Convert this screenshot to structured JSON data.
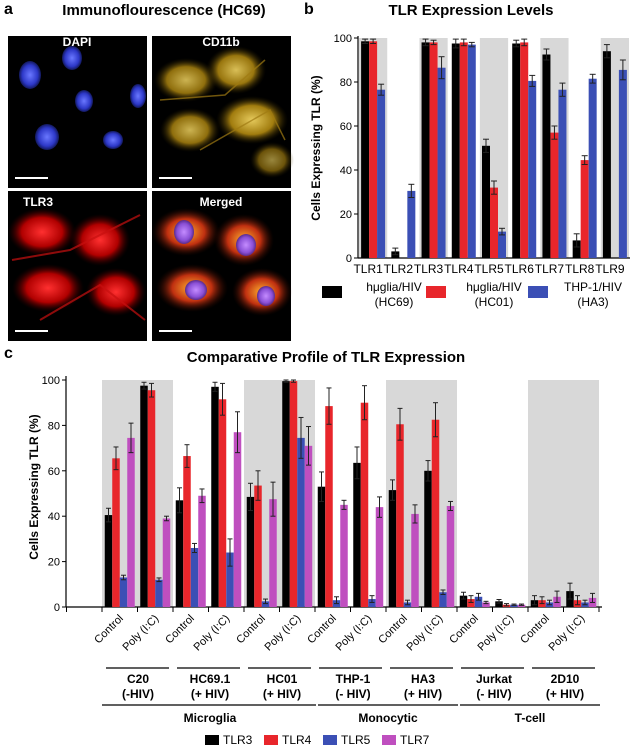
{
  "panel_a": {
    "letter": "a",
    "title": "Immunoflourescence (HC69)",
    "images": [
      {
        "label": "DAPI",
        "tone": "blue"
      },
      {
        "label": "CD11b",
        "tone": "yellow"
      },
      {
        "label": "TLR3",
        "tone": "red"
      },
      {
        "label": "Merged",
        "tone": "merged"
      }
    ]
  },
  "panel_b": {
    "letter": "b",
    "legend": [
      {
        "line1": "hμglia/HIV",
        "line2": "(HC69)",
        "color": "#000000"
      },
      {
        "line1": "hμglia/HIV",
        "line2": "(HC01)",
        "color": "#e8262b"
      },
      {
        "line1": "THP-1/HIV",
        "line2": "(HA3)",
        "color": "#3b4fb5"
      }
    ]
  },
  "panel_c": {
    "letter": "c",
    "groups": [
      {
        "label1": "C20",
        "label2": "(-HIV)"
      },
      {
        "label1": "HC69.1",
        "label2": "(+ HIV)"
      },
      {
        "label1": "HC01",
        "label2": "(+ HIV)"
      },
      {
        "label1": "THP-1",
        "label2": "(- HIV)"
      },
      {
        "label1": "HA3",
        "label2": "(+ HIV)"
      },
      {
        "label1": "Jurkat",
        "label2": "(- HIV)"
      },
      {
        "label1": "2D10",
        "label2": "(+ HIV)"
      }
    ],
    "categories": [
      {
        "label": "Microglia"
      },
      {
        "label": "Monocytic"
      },
      {
        "label": "T-cell"
      }
    ]
  },
  "chart_data": [
    {
      "type": "bar",
      "title": "TLR Expression Levels",
      "xlabel": "",
      "ylabel": "Cells Expressing TLR (%)",
      "ylim": [
        0,
        100
      ],
      "yticks": [
        0,
        20,
        40,
        60,
        80,
        100
      ],
      "categories": [
        "TLR1",
        "TLR2",
        "TLR3",
        "TLR4",
        "TLR5",
        "TLR6",
        "TLR7",
        "TLR8",
        "TLR9"
      ],
      "series": [
        {
          "name": "hμglia/HIV (HC69)",
          "color": "#000000",
          "values": [
            98.5,
            3,
            98,
            97.5,
            51,
            97.5,
            92.5,
            8,
            94
          ],
          "errors": [
            1,
            1.5,
            1.5,
            2,
            3,
            1.5,
            2.5,
            3,
            3
          ]
        },
        {
          "name": "hμglia/HIV (HC01)",
          "color": "#e8262b",
          "values": [
            98.5,
            0,
            98,
            98,
            32,
            98,
            57,
            44.5,
            0
          ],
          "errors": [
            1,
            0,
            1,
            1.5,
            3,
            1.5,
            3,
            2,
            0
          ]
        },
        {
          "name": "THP-1/HIV (HA3)",
          "color": "#3b4fb5",
          "values": [
            76.5,
            30.5,
            86.5,
            97,
            12,
            80.5,
            76.5,
            81.5,
            85.5
          ],
          "errors": [
            2.5,
            3,
            5,
            1,
            1.5,
            2.5,
            3,
            2,
            4.5
          ]
        }
      ]
    },
    {
      "type": "bar",
      "title": "Comparative Profile of TLR Expression",
      "xlabel": "",
      "ylabel": "Cells Expressing TLR (%)",
      "ylim": [
        0,
        100
      ],
      "yticks": [
        0,
        20,
        40,
        60,
        80,
        100
      ],
      "legend": [
        "TLR3",
        "TLR4",
        "TLR5",
        "TLR7"
      ],
      "colors": [
        "#000000",
        "#e8262b",
        "#3b4fb5",
        "#bf4fbf"
      ],
      "conditions": [
        {
          "label": "Control",
          "values": [
            40.5,
            65.5,
            13,
            74.5
          ],
          "errors": [
            3,
            5,
            1,
            6.5
          ]
        },
        {
          "label": "Poly (I:C)",
          "values": [
            97.5,
            95.5,
            12,
            39
          ],
          "errors": [
            1.5,
            3,
            0.8,
            1
          ]
        },
        {
          "label": "Control",
          "values": [
            47,
            66.5,
            26,
            49
          ],
          "errors": [
            5.5,
            5,
            2,
            3
          ]
        },
        {
          "label": "Poly (I:C)",
          "values": [
            97,
            91.5,
            24,
            77
          ],
          "errors": [
            2,
            7,
            6,
            9
          ]
        },
        {
          "label": "Control",
          "values": [
            48.5,
            53.5,
            2.5,
            47.5
          ],
          "errors": [
            6,
            6.5,
            1,
            7.5
          ]
        },
        {
          "label": "Poly (I:C)",
          "values": [
            99.5,
            99.5,
            74.5,
            71
          ],
          "errors": [
            0.5,
            0.5,
            9,
            8.5
          ]
        },
        {
          "label": "Control",
          "values": [
            53,
            88.5,
            3,
            45
          ],
          "errors": [
            6.5,
            8,
            1.5,
            2
          ]
        },
        {
          "label": "Poly (I:C)",
          "values": [
            63.5,
            90,
            3.5,
            44
          ],
          "errors": [
            7,
            7.5,
            1.5,
            4.5
          ]
        },
        {
          "label": "Control",
          "values": [
            51.5,
            80.5,
            2,
            41
          ],
          "errors": [
            4.5,
            7,
            1,
            4
          ]
        },
        {
          "label": "Poly (I:C)",
          "values": [
            60,
            82.5,
            6.5,
            44.5
          ],
          "errors": [
            4.5,
            7.5,
            1,
            2
          ]
        },
        {
          "label": "Control",
          "values": [
            5,
            3.5,
            4.5,
            2
          ],
          "errors": [
            1.5,
            1.5,
            1.5,
            0.5
          ]
        },
        {
          "label": "Poly (I:C)",
          "values": [
            2.5,
            1,
            1,
            1
          ],
          "errors": [
            0.8,
            0.5,
            0.3,
            0.3
          ]
        },
        {
          "label": "Control",
          "values": [
            3,
            3,
            2,
            4.5
          ],
          "errors": [
            2,
            1.5,
            1,
            2.5
          ]
        },
        {
          "label": "Poly (I:C)",
          "values": [
            7,
            3,
            2,
            4
          ],
          "errors": [
            3.5,
            2,
            1,
            2
          ]
        }
      ]
    }
  ]
}
